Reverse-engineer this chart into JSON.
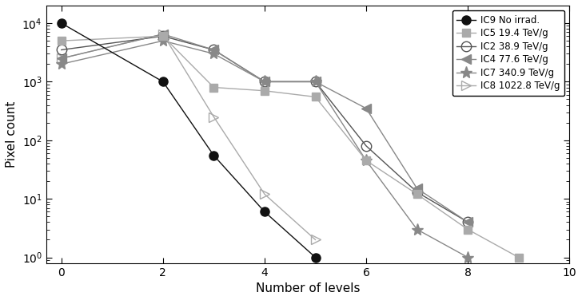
{
  "series": [
    {
      "label": "IC9 No irrad.",
      "x": [
        0,
        2,
        3,
        4,
        5
      ],
      "y": [
        10000,
        1000,
        55,
        6,
        1
      ],
      "color": "#111111",
      "marker": "o",
      "markersize": 8,
      "fillstyle": "full",
      "linestyle": "-",
      "zorder": 5
    },
    {
      "label": "IC5 19.4 TeV/g",
      "x": [
        0,
        2,
        3,
        4,
        5,
        6,
        7,
        8,
        9
      ],
      "y": [
        5000,
        6000,
        800,
        700,
        550,
        45,
        12,
        3,
        1
      ],
      "color": "#aaaaaa",
      "marker": "s",
      "markersize": 7,
      "fillstyle": "full",
      "linestyle": "-",
      "zorder": 4
    },
    {
      "label": "IC2 38.9 TeV/g",
      "x": [
        0,
        2,
        3,
        4,
        5,
        6,
        7,
        8
      ],
      "y": [
        3500,
        6000,
        3500,
        1000,
        1000,
        80,
        13,
        4
      ],
      "color": "#555555",
      "marker": "o",
      "markersize": 9,
      "fillstyle": "none",
      "linestyle": "-",
      "zorder": 3
    },
    {
      "label": "IC4 77.6 TeV/g",
      "x": [
        0,
        2,
        3,
        4,
        5,
        6,
        7,
        8
      ],
      "y": [
        2500,
        6500,
        3500,
        1000,
        1000,
        350,
        15,
        4
      ],
      "color": "#888888",
      "marker": "<",
      "markersize": 9,
      "fillstyle": "full",
      "linestyle": "-",
      "zorder": 3
    },
    {
      "label": "IC7 340.9 TeV/g",
      "x": [
        0,
        2,
        3,
        4,
        5,
        6,
        7,
        8
      ],
      "y": [
        2000,
        5000,
        3000,
        1000,
        1000,
        45,
        3,
        1
      ],
      "color": "#888888",
      "marker": "*",
      "markersize": 11,
      "fillstyle": "full",
      "linestyle": "-",
      "zorder": 3
    },
    {
      "label": "IC8 1022.8 TeV/g",
      "x": [
        0,
        2,
        3,
        4,
        5
      ],
      "y": [
        2500,
        6500,
        250,
        12,
        2
      ],
      "color": "#aaaaaa",
      "marker": ">",
      "markersize": 9,
      "fillstyle": "none",
      "linestyle": "-",
      "zorder": 2
    }
  ],
  "xlabel": "Number of levels",
  "ylabel": "Pixel count",
  "xlim": [
    -0.3,
    10
  ],
  "ylim": [
    0.8,
    20000
  ],
  "xticks": [
    0,
    2,
    4,
    6,
    8,
    10
  ],
  "title": "",
  "legend_fontsize": 8.5,
  "figsize": [
    7.28,
    3.76
  ],
  "dpi": 100
}
